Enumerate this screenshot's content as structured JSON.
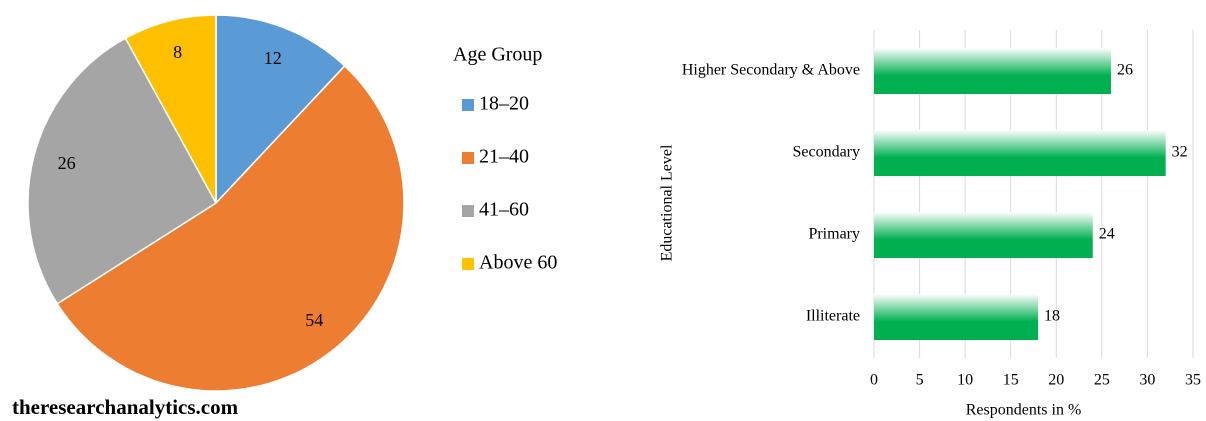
{
  "chart_data": [
    {
      "type": "pie",
      "legend_title": "Age Group",
      "categories": [
        "18–20",
        "21–40",
        "41–60",
        "Above 60"
      ],
      "values": [
        12,
        54,
        26,
        8
      ],
      "colors": [
        "#5b9bd5",
        "#ed7d31",
        "#a5a5a5",
        "#ffc000"
      ],
      "legend": "right"
    },
    {
      "type": "hbar",
      "xlabel": "Respondents in %",
      "ylabel": "Educational Level",
      "categories": [
        "Higher Secondary & Above",
        "Secondary",
        "Primary",
        "Illiterate"
      ],
      "values": [
        26,
        32,
        24,
        18
      ],
      "color": "#00b050",
      "xlim": [
        0,
        35
      ],
      "xticks": [
        0,
        5,
        10,
        15,
        20,
        25,
        30,
        35
      ],
      "grid": true
    }
  ],
  "watermark": "theresearchanalytics.com"
}
